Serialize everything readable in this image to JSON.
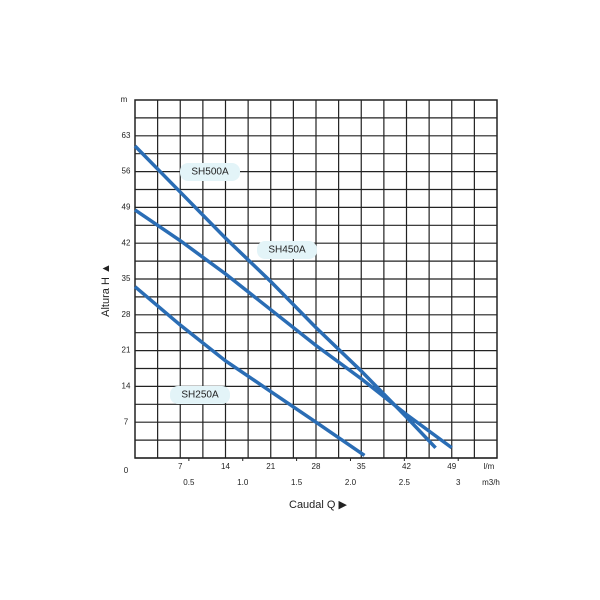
{
  "chart_data": {
    "type": "line",
    "x_label": "Caudal  Q ▶",
    "y_label": "Altura  H ▲",
    "x_unit": "l/m",
    "x2_unit": "m3/h",
    "y_unit": "m",
    "xlim": [
      0,
      56
    ],
    "xticks": [
      7,
      14,
      21,
      28,
      35,
      42,
      49
    ],
    "x2lim": [
      0,
      3.36
    ],
    "x2ticks": [
      0.5,
      {
        "value": 1,
        "label": "1.0"
      },
      1.5,
      {
        "value": 2,
        "label": "2.0"
      },
      2.5,
      3
    ],
    "ylim": [
      0,
      70
    ],
    "yticks": [
      0,
      7,
      14,
      21,
      28,
      35,
      42,
      49,
      56,
      63
    ],
    "grid": true,
    "series": [
      {
        "name": "SH500A",
        "color": "#2a6db5",
        "x": [
          0,
          7,
          14,
          21,
          28,
          35,
          42,
          46.5
        ],
        "values": [
          61,
          52,
          43,
          34.5,
          25.5,
          17,
          8,
          2
        ]
      },
      {
        "name": "SH450A",
        "color": "#2a6db5",
        "x": [
          0,
          7,
          14,
          21,
          28,
          35,
          42,
          49
        ],
        "values": [
          48.5,
          42.5,
          36,
          29,
          22,
          15.5,
          8.5,
          2
        ]
      },
      {
        "name": "SH250A",
        "color": "#2a6db5",
        "x": [
          0,
          7,
          14,
          21,
          28,
          35.5
        ],
        "values": [
          33.5,
          26,
          19,
          13,
          7,
          0.5
        ]
      }
    ]
  }
}
